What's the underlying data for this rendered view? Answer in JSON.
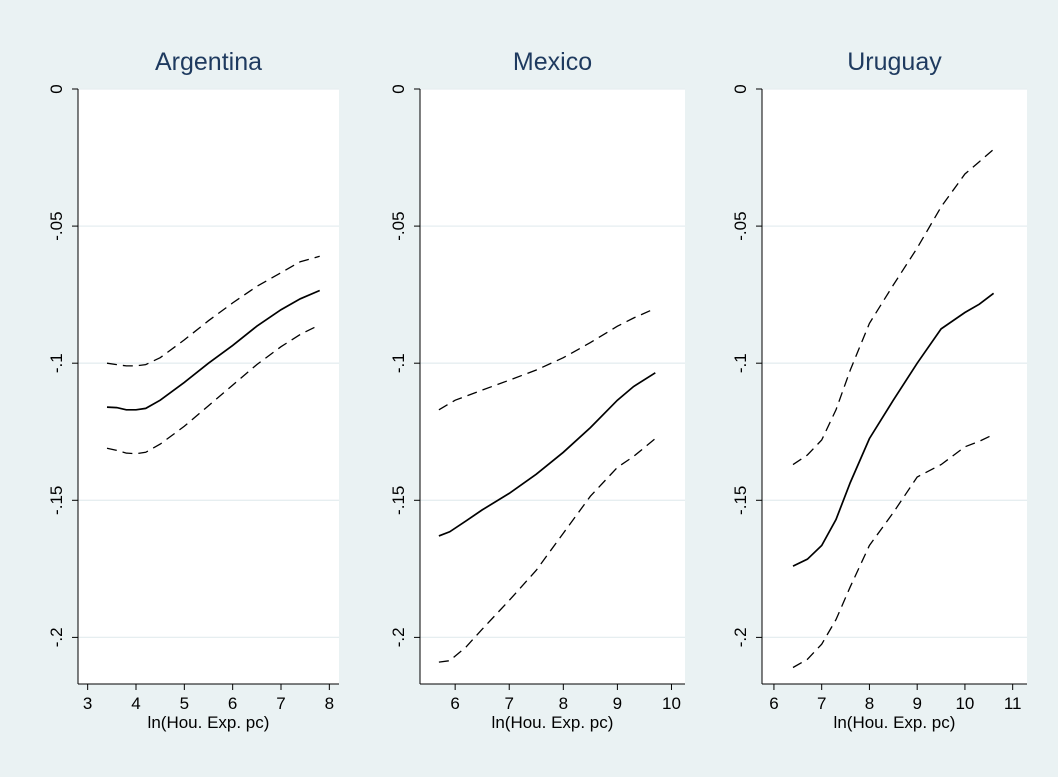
{
  "chart_data": [
    {
      "type": "line",
      "title": "Argentina",
      "xlabel": "ln(Hou. Exp. pc)",
      "ylabel": "",
      "xlim": [
        2.8,
        8.2
      ],
      "ylim": [
        -0.217,
        0.0
      ],
      "xticks": [
        3,
        4,
        5,
        6,
        7,
        8
      ],
      "yticks": [
        0,
        -0.05,
        -0.1,
        -0.15,
        -0.2
      ],
      "ytick_labels": [
        "0",
        "-.05",
        "-.1",
        "-.15",
        "-.2"
      ],
      "grid": true,
      "series": [
        {
          "style": "dashed",
          "x": [
            3.4,
            3.6,
            3.8,
            4.0,
            4.2,
            4.5,
            5.0,
            5.5,
            6.0,
            6.5,
            7.0,
            7.4,
            7.8
          ],
          "y": [
            -0.1,
            -0.1005,
            -0.101,
            -0.101,
            -0.1005,
            -0.098,
            -0.0915,
            -0.0845,
            -0.078,
            -0.072,
            -0.067,
            -0.063,
            -0.061
          ]
        },
        {
          "style": "solid",
          "x": [
            3.4,
            3.6,
            3.8,
            4.0,
            4.2,
            4.5,
            5.0,
            5.5,
            6.0,
            6.5,
            7.0,
            7.4,
            7.8
          ],
          "y": [
            -0.116,
            -0.1162,
            -0.117,
            -0.117,
            -0.1165,
            -0.1135,
            -0.107,
            -0.1,
            -0.0935,
            -0.0865,
            -0.0805,
            -0.0765,
            -0.0735
          ]
        },
        {
          "style": "dashed",
          "x": [
            3.4,
            3.6,
            3.8,
            4.0,
            4.2,
            4.5,
            5.0,
            5.5,
            6.0,
            6.5,
            7.0,
            7.4,
            7.8
          ],
          "y": [
            -0.131,
            -0.1318,
            -0.1328,
            -0.133,
            -0.1325,
            -0.1295,
            -0.123,
            -0.1155,
            -0.108,
            -0.1005,
            -0.094,
            -0.0895,
            -0.086
          ]
        }
      ]
    },
    {
      "type": "line",
      "title": "Mexico",
      "xlabel": "ln(Hou. Exp. pc)",
      "ylabel": "",
      "xlim": [
        5.35,
        10.25
      ],
      "ylim": [
        -0.217,
        0.0
      ],
      "xticks": [
        6,
        7,
        8,
        9,
        10
      ],
      "yticks": [
        0,
        -0.05,
        -0.1,
        -0.15,
        -0.2
      ],
      "ytick_labels": [
        "0",
        "-.05",
        "-.1",
        "-.15",
        "-.2"
      ],
      "grid": true,
      "series": [
        {
          "style": "dashed",
          "x": [
            5.7,
            6.0,
            6.5,
            7.0,
            7.5,
            8.0,
            8.5,
            9.0,
            9.3,
            9.7
          ],
          "y": [
            -0.117,
            -0.1135,
            -0.1098,
            -0.1062,
            -0.1025,
            -0.098,
            -0.0925,
            -0.0865,
            -0.0835,
            -0.08
          ]
        },
        {
          "style": "solid",
          "x": [
            5.7,
            5.9,
            6.2,
            6.5,
            7.0,
            7.5,
            8.0,
            8.5,
            9.0,
            9.3,
            9.7
          ],
          "y": [
            -0.163,
            -0.1615,
            -0.1575,
            -0.1535,
            -0.1475,
            -0.1405,
            -0.1325,
            -0.1235,
            -0.1135,
            -0.1085,
            -0.1035
          ]
        },
        {
          "style": "dashed",
          "x": [
            5.7,
            5.9,
            6.2,
            6.5,
            7.0,
            7.5,
            8.0,
            8.5,
            9.0,
            9.3,
            9.7
          ],
          "y": [
            -0.209,
            -0.2085,
            -0.2035,
            -0.197,
            -0.1865,
            -0.1755,
            -0.162,
            -0.1485,
            -0.138,
            -0.134,
            -0.1275
          ]
        }
      ]
    },
    {
      "type": "line",
      "title": "Uruguay",
      "xlabel": "ln(Hou. Exp. pc)",
      "ylabel": "",
      "xlim": [
        5.75,
        11.3
      ],
      "ylim": [
        -0.217,
        0.0
      ],
      "xticks": [
        6,
        7,
        8,
        9,
        10,
        11
      ],
      "yticks": [
        0,
        -0.05,
        -0.1,
        -0.15,
        -0.2
      ],
      "ytick_labels": [
        "0",
        "-.05",
        "-.1",
        "-.15",
        "-.2"
      ],
      "grid": true,
      "series": [
        {
          "style": "dashed",
          "x": [
            6.4,
            6.7,
            7.0,
            7.3,
            7.6,
            8.0,
            8.5,
            9.0,
            9.5,
            10.0,
            10.3,
            10.6
          ],
          "y": [
            -0.137,
            -0.1335,
            -0.128,
            -0.117,
            -0.1025,
            -0.0855,
            -0.0715,
            -0.058,
            -0.043,
            -0.031,
            -0.0265,
            -0.022
          ]
        },
        {
          "style": "solid",
          "x": [
            6.4,
            6.7,
            7.0,
            7.3,
            7.6,
            8.0,
            8.5,
            9.0,
            9.5,
            10.0,
            10.3,
            10.6
          ],
          "y": [
            -0.174,
            -0.1715,
            -0.1665,
            -0.157,
            -0.1435,
            -0.1275,
            -0.1135,
            -0.1,
            -0.0875,
            -0.0815,
            -0.0785,
            -0.0745
          ]
        },
        {
          "style": "dashed",
          "x": [
            6.4,
            6.7,
            7.0,
            7.3,
            7.6,
            8.0,
            8.5,
            9.0,
            9.5,
            10.0,
            10.3,
            10.6
          ],
          "y": [
            -0.211,
            -0.208,
            -0.2025,
            -0.1935,
            -0.1815,
            -0.1665,
            -0.1545,
            -0.1415,
            -0.137,
            -0.1305,
            -0.1285,
            -0.126
          ]
        }
      ]
    }
  ]
}
